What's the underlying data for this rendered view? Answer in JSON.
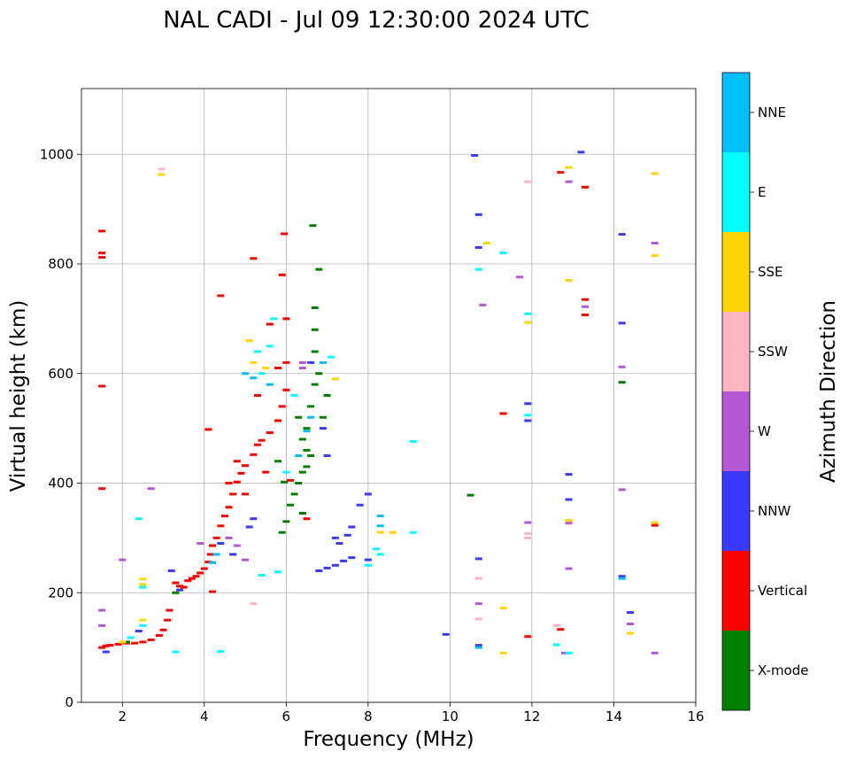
{
  "chart_data": {
    "type": "scatter",
    "title": "NAL CADI - Jul 09 12:30:00 2024 UTC",
    "xlabel": "Frequency (MHz)",
    "ylabel": "Virtual height (km)",
    "xlim": [
      1,
      16
    ],
    "ylim": [
      0,
      1120
    ],
    "xticks": [
      2,
      4,
      6,
      8,
      10,
      12,
      14,
      16
    ],
    "yticks": [
      0,
      200,
      400,
      600,
      800,
      1000
    ],
    "grid": true,
    "colorbar": {
      "label": "Azimuth Direction",
      "categories": [
        {
          "name": "X-mode",
          "color": "#008000"
        },
        {
          "name": "Vertical",
          "color": "#ff0000"
        },
        {
          "name": "NNW",
          "color": "#3a3aff"
        },
        {
          "name": "W",
          "color": "#b458d6"
        },
        {
          "name": "SSW",
          "color": "#ffb6c1"
        },
        {
          "name": "SSE",
          "color": "#ffd700"
        },
        {
          "name": "E",
          "color": "#00ffff"
        },
        {
          "name": "NNE",
          "color": "#00bfff"
        }
      ]
    },
    "series": [
      {
        "name": "Vertical",
        "color": "#ff0000",
        "points": [
          [
            1.5,
            100
          ],
          [
            1.6,
            103
          ],
          [
            1.7,
            104
          ],
          [
            1.9,
            106
          ],
          [
            2.1,
            108
          ],
          [
            2.3,
            108
          ],
          [
            2.5,
            110
          ],
          [
            2.7,
            114
          ],
          [
            2.9,
            122
          ],
          [
            3.0,
            132
          ],
          [
            3.1,
            150
          ],
          [
            3.15,
            168
          ],
          [
            3.3,
            218
          ],
          [
            3.4,
            212
          ],
          [
            3.5,
            210
          ],
          [
            3.6,
            222
          ],
          [
            3.7,
            226
          ],
          [
            3.8,
            230
          ],
          [
            3.9,
            236
          ],
          [
            4.0,
            244
          ],
          [
            4.1,
            256
          ],
          [
            4.15,
            270
          ],
          [
            4.2,
            286
          ],
          [
            4.3,
            300
          ],
          [
            4.4,
            322
          ],
          [
            4.5,
            340
          ],
          [
            4.6,
            356
          ],
          [
            4.7,
            380
          ],
          [
            4.8,
            402
          ],
          [
            4.9,
            418
          ],
          [
            5.0,
            432
          ],
          [
            5.2,
            452
          ],
          [
            5.4,
            478
          ],
          [
            5.6,
            492
          ],
          [
            5.8,
            514
          ],
          [
            5.9,
            540
          ],
          [
            6.0,
            570
          ],
          [
            6.0,
            620
          ],
          [
            6.0,
            700
          ],
          [
            5.9,
            780
          ],
          [
            5.95,
            855
          ],
          [
            5.3,
            470
          ],
          [
            4.1,
            498
          ],
          [
            4.6,
            400
          ],
          [
            4.8,
            440
          ],
          [
            5.0,
            380
          ],
          [
            5.5,
            420
          ],
          [
            5.3,
            560
          ],
          [
            5.8,
            610
          ],
          [
            1.5,
            390
          ],
          [
            1.5,
            577
          ],
          [
            1.5,
            820
          ],
          [
            1.5,
            860
          ],
          [
            1.5,
            812
          ],
          [
            6.1,
            405
          ],
          [
            5.6,
            690
          ],
          [
            5.2,
            810
          ],
          [
            11.3,
            527
          ],
          [
            11.9,
            120
          ],
          [
            12.7,
            133
          ],
          [
            12.7,
            967
          ],
          [
            13.3,
            940
          ],
          [
            13.3,
            707
          ],
          [
            13.3,
            735
          ],
          [
            15.0,
            323
          ],
          [
            4.2,
            202
          ],
          [
            4.4,
            742
          ],
          [
            6.5,
            335
          ]
        ]
      },
      {
        "name": "X-mode",
        "color": "#008000",
        "points": [
          [
            5.9,
            310
          ],
          [
            6.0,
            330
          ],
          [
            6.1,
            360
          ],
          [
            6.2,
            380
          ],
          [
            6.3,
            400
          ],
          [
            6.4,
            420
          ],
          [
            6.5,
            430
          ],
          [
            6.6,
            450
          ],
          [
            6.4,
            480
          ],
          [
            6.5,
            500
          ],
          [
            6.3,
            520
          ],
          [
            6.6,
            540
          ],
          [
            6.7,
            580
          ],
          [
            6.8,
            600
          ],
          [
            6.7,
            640
          ],
          [
            6.7,
            680
          ],
          [
            6.7,
            720
          ],
          [
            6.8,
            790
          ],
          [
            6.65,
            870
          ],
          [
            6.5,
            460
          ],
          [
            5.95,
            402
          ],
          [
            5.8,
            440
          ],
          [
            6.9,
            520
          ],
          [
            7.0,
            560
          ],
          [
            3.3,
            200
          ],
          [
            2.1,
            110
          ],
          [
            10.5,
            378
          ],
          [
            14.2,
            584
          ],
          [
            6.4,
            345
          ]
        ]
      },
      {
        "name": "NNW",
        "color": "#3a3aff",
        "points": [
          [
            1.6,
            92
          ],
          [
            2.4,
            130
          ],
          [
            3.4,
            205
          ],
          [
            3.2,
            240
          ],
          [
            4.7,
            270
          ],
          [
            4.4,
            290
          ],
          [
            6.8,
            240
          ],
          [
            7.0,
            245
          ],
          [
            7.2,
            250
          ],
          [
            7.4,
            258
          ],
          [
            7.6,
            264
          ],
          [
            7.3,
            290
          ],
          [
            7.5,
            305
          ],
          [
            7.2,
            300
          ],
          [
            8.0,
            260
          ],
          [
            7.6,
            320
          ],
          [
            7.8,
            360
          ],
          [
            8.0,
            380
          ],
          [
            6.9,
            500
          ],
          [
            6.6,
            620
          ],
          [
            10.6,
            998
          ],
          [
            10.7,
            890
          ],
          [
            10.7,
            830
          ],
          [
            10.7,
            262
          ],
          [
            10.7,
            104
          ],
          [
            9.9,
            124
          ],
          [
            11.9,
            545
          ],
          [
            11.9,
            514
          ],
          [
            12.9,
            416
          ],
          [
            12.9,
            370
          ],
          [
            13.2,
            1004
          ],
          [
            14.2,
            854
          ],
          [
            14.2,
            692
          ],
          [
            14.2,
            230
          ],
          [
            14.4,
            164
          ],
          [
            5.1,
            320
          ],
          [
            5.2,
            335
          ],
          [
            7.0,
            450
          ]
        ]
      },
      {
        "name": "W",
        "color": "#b458d6",
        "points": [
          [
            1.5,
            140
          ],
          [
            1.5,
            168
          ],
          [
            2.0,
            260
          ],
          [
            2.7,
            390
          ],
          [
            3.9,
            290
          ],
          [
            4.6,
            300
          ],
          [
            6.4,
            610
          ],
          [
            6.4,
            620
          ],
          [
            10.7,
            180
          ],
          [
            10.8,
            725
          ],
          [
            11.7,
            776
          ],
          [
            11.9,
            328
          ],
          [
            12.8,
            90
          ],
          [
            12.9,
            244
          ],
          [
            12.9,
            327
          ],
          [
            12.9,
            950
          ],
          [
            13.3,
            722
          ],
          [
            14.2,
            612
          ],
          [
            14.2,
            388
          ],
          [
            14.4,
            143
          ],
          [
            15.0,
            838
          ],
          [
            15.0,
            90
          ],
          [
            4.8,
            286
          ],
          [
            5.0,
            260
          ]
        ]
      },
      {
        "name": "SSW",
        "color": "#ffb6c1",
        "points": [
          [
            2.95,
            973
          ],
          [
            11.9,
            950
          ],
          [
            11.9,
            300
          ],
          [
            11.9,
            308
          ],
          [
            10.7,
            152
          ],
          [
            10.7,
            226
          ],
          [
            12.6,
            140
          ],
          [
            5.2,
            180
          ]
        ]
      },
      {
        "name": "SSE",
        "color": "#ffd700",
        "points": [
          [
            2.5,
            215
          ],
          [
            2.5,
            225
          ],
          [
            2.5,
            150
          ],
          [
            2.0,
            110
          ],
          [
            2.95,
            963
          ],
          [
            5.2,
            620
          ],
          [
            5.5,
            610
          ],
          [
            8.3,
            310
          ],
          [
            8.6,
            310
          ],
          [
            10.9,
            838
          ],
          [
            11.3,
            172
          ],
          [
            11.3,
            90
          ],
          [
            11.9,
            693
          ],
          [
            12.9,
            976
          ],
          [
            12.9,
            770
          ],
          [
            12.9,
            332
          ],
          [
            14.4,
            126
          ],
          [
            15.0,
            965
          ],
          [
            15.0,
            815
          ],
          [
            15.0,
            328
          ],
          [
            7.2,
            590
          ],
          [
            5.1,
            660
          ]
        ]
      },
      {
        "name": "E",
        "color": "#00ffff",
        "points": [
          [
            2.4,
            335
          ],
          [
            2.5,
            210
          ],
          [
            2.5,
            140
          ],
          [
            2.2,
            118
          ],
          [
            3.3,
            92
          ],
          [
            4.4,
            93
          ],
          [
            5.4,
            232
          ],
          [
            5.8,
            238
          ],
          [
            5.4,
            600
          ],
          [
            5.3,
            640
          ],
          [
            5.7,
            700
          ],
          [
            7.1,
            630
          ],
          [
            8.2,
            280
          ],
          [
            8.3,
            270
          ],
          [
            8.0,
            250
          ],
          [
            9.1,
            476
          ],
          [
            9.1,
            310
          ],
          [
            10.7,
            790
          ],
          [
            11.3,
            820
          ],
          [
            11.9,
            709
          ],
          [
            11.9,
            524
          ],
          [
            12.6,
            105
          ],
          [
            12.9,
            90
          ],
          [
            6.2,
            560
          ],
          [
            5.6,
            650
          ],
          [
            6.0,
            420
          ]
        ]
      },
      {
        "name": "NNE",
        "color": "#00bfff",
        "points": [
          [
            4.2,
            255
          ],
          [
            4.3,
            270
          ],
          [
            5.0,
            600
          ],
          [
            5.2,
            592
          ],
          [
            5.6,
            580
          ],
          [
            6.6,
            520
          ],
          [
            6.9,
            620
          ],
          [
            8.3,
            340
          ],
          [
            8.3,
            322
          ],
          [
            10.7,
            100
          ],
          [
            14.2,
            226
          ],
          [
            6.5,
            495
          ],
          [
            6.3,
            450
          ]
        ]
      }
    ]
  }
}
